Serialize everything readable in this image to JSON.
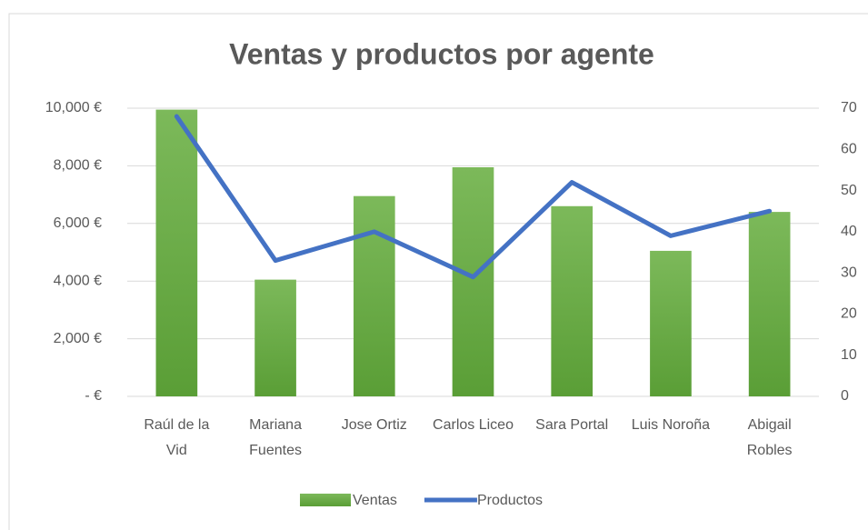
{
  "chart_data": {
    "type": "bar",
    "title": "Ventas y productos por agente",
    "categories": [
      "Raúl de la Vid",
      "Mariana Fuentes",
      "Jose Ortiz",
      "Carlos Liceo",
      "Sara Portal",
      "Luis Noroña",
      "Abigail Robles"
    ],
    "series": [
      {
        "name": "Ventas",
        "color": "#70ad47",
        "values": [
          9950,
          4050,
          6950,
          7950,
          6600,
          5050,
          6400
        ]
      },
      {
        "name": "Productos",
        "color": "#4472c4",
        "type": "line",
        "axis": "y2",
        "values": [
          68,
          33,
          40,
          29,
          52,
          39,
          45
        ]
      }
    ],
    "ylim": [
      0,
      10000
    ],
    "yticks": [
      {
        "value": 0,
        "label": "-  €"
      },
      {
        "value": 2000,
        "label": "2,000 €"
      },
      {
        "value": 4000,
        "label": "4,000 €"
      },
      {
        "value": 6000,
        "label": "6,000 €"
      },
      {
        "value": 8000,
        "label": "8,000 €"
      },
      {
        "value": 10000,
        "label": "10,000 €"
      }
    ],
    "y2lim": [
      0,
      70
    ],
    "y2ticks": [
      0,
      10,
      20,
      30,
      40,
      50,
      60,
      70
    ],
    "grid": true,
    "legend": "bottom"
  }
}
